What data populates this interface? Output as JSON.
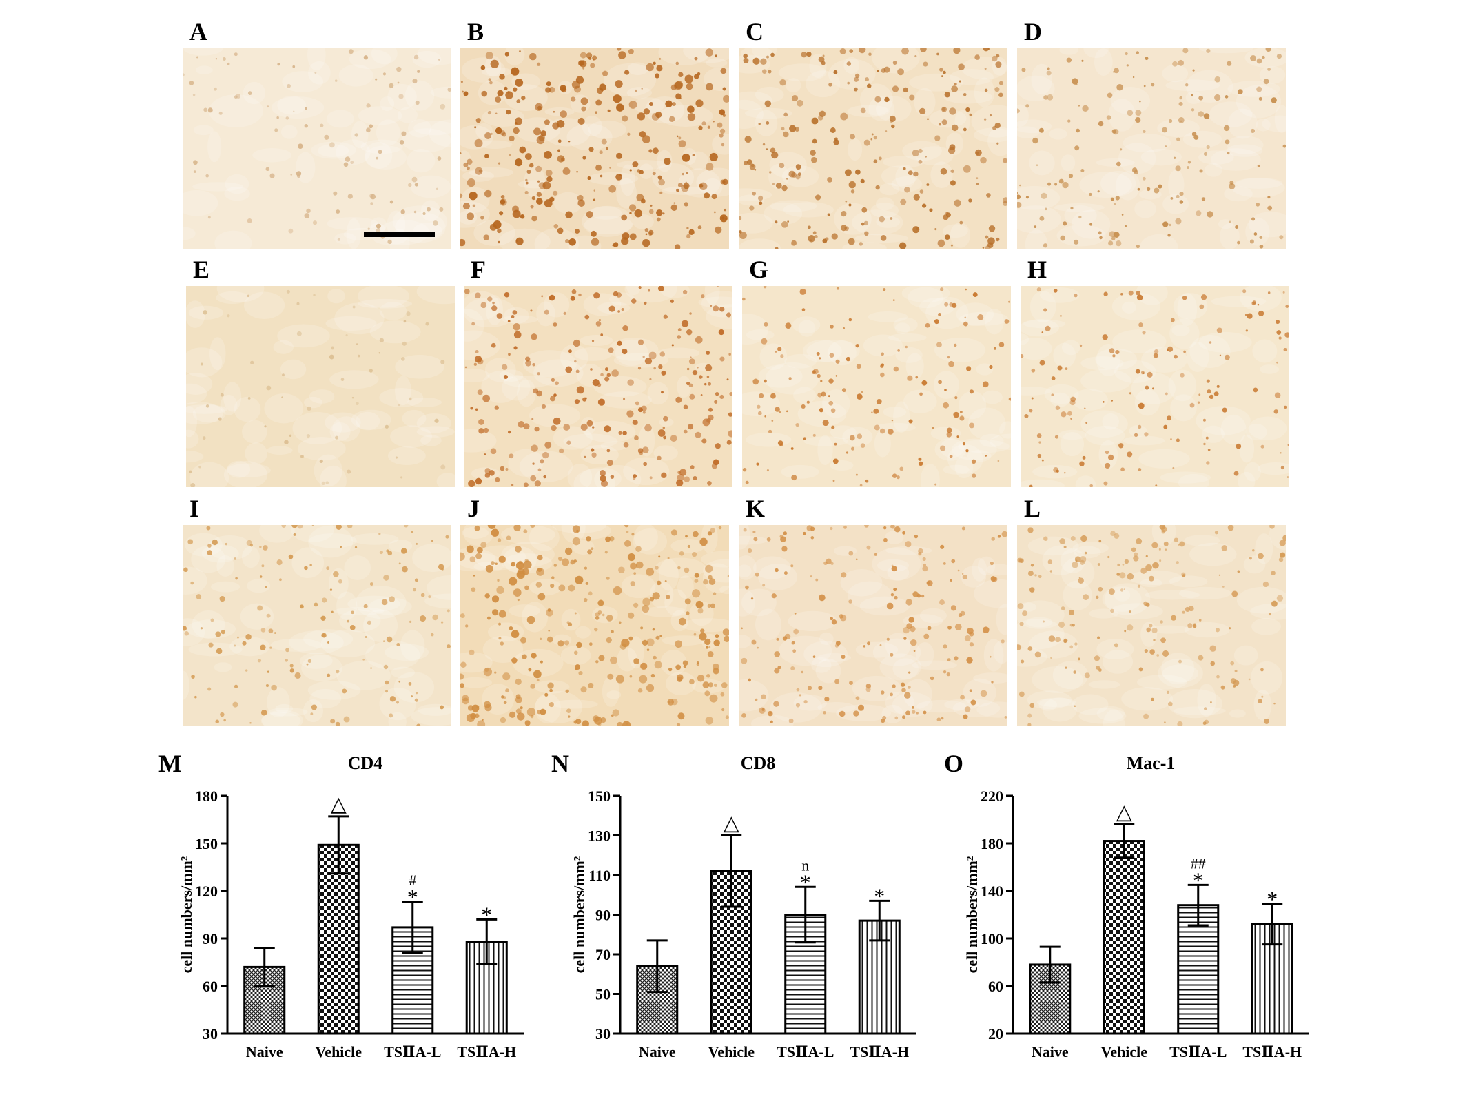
{
  "micrograph_panels": [
    {
      "label": "A",
      "stain": "light",
      "tone": "#f6ead6",
      "dots": "#d7b48a",
      "density": 0.25
    },
    {
      "label": "B",
      "stain": "heavy",
      "tone": "#f1dcbc",
      "dots": "#b5651d",
      "density": 1.0
    },
    {
      "label": "C",
      "stain": "heavy",
      "tone": "#f3e1c4",
      "dots": "#b8702a",
      "density": 0.75
    },
    {
      "label": "D",
      "stain": "medium",
      "tone": "#f5e6cf",
      "dots": "#c78f4f",
      "density": 0.5
    },
    {
      "label": "E",
      "stain": "light",
      "tone": "#f2e1c2",
      "dots": "#dcbf93",
      "density": 0.1
    },
    {
      "label": "F",
      "stain": "heavy",
      "tone": "#f3e0c0",
      "dots": "#bf6a25",
      "density": 0.8
    },
    {
      "label": "G",
      "stain": "medium",
      "tone": "#f5e6cb",
      "dots": "#c8772c",
      "density": 0.45
    },
    {
      "label": "H",
      "stain": "medium",
      "tone": "#f5e7cd",
      "dots": "#c97b33",
      "density": 0.4
    },
    {
      "label": "I",
      "stain": "medium",
      "tone": "#f3e4ca",
      "dots": "#d49a52",
      "density": 0.45
    },
    {
      "label": "J",
      "stain": "heavy",
      "tone": "#f2dcb8",
      "dots": "#d08d41",
      "density": 1.0
    },
    {
      "label": "K",
      "stain": "medium",
      "tone": "#f3e1c6",
      "dots": "#d38f46",
      "density": 0.6
    },
    {
      "label": "L",
      "stain": "medium",
      "tone": "#f3e3c9",
      "dots": "#d59a55",
      "density": 0.55
    }
  ],
  "chart_data": [
    {
      "panel": "M",
      "type": "bar",
      "title": "CD4",
      "ylabel": "cell numbers/mm²",
      "categories": [
        "Naive",
        "Vehicle",
        "TSⅡA-L",
        "TSⅡA-H"
      ],
      "values": [
        72,
        149,
        97,
        88
      ],
      "errors": [
        12,
        18,
        16,
        14
      ],
      "annotations": [
        [],
        [
          "△"
        ],
        [
          "#",
          "*"
        ],
        [
          "*"
        ]
      ],
      "patterns": [
        "crosshatch",
        "checker",
        "horizontal",
        "vertical"
      ],
      "ylim": [
        30,
        180
      ],
      "yticks": [
        30,
        60,
        90,
        120,
        150,
        180
      ]
    },
    {
      "panel": "N",
      "type": "bar",
      "title": "CD8",
      "ylabel": "cell numbers/mm²",
      "categories": [
        "Naive",
        "Vehicle",
        "TSⅡA-L",
        "TSⅡA-H"
      ],
      "values": [
        64,
        112,
        90,
        87
      ],
      "errors": [
        13,
        18,
        14,
        10
      ],
      "annotations": [
        [],
        [
          "△"
        ],
        [
          "n",
          "*"
        ],
        [
          "*"
        ]
      ],
      "patterns": [
        "crosshatch",
        "checker",
        "horizontal",
        "vertical"
      ],
      "ylim": [
        30,
        150
      ],
      "yticks": [
        30,
        50,
        70,
        90,
        110,
        130,
        150
      ]
    },
    {
      "panel": "O",
      "type": "bar",
      "title": "Mac-1",
      "ylabel": "cell numbers/mm²",
      "categories": [
        "Naive",
        "Vehicle",
        "TSⅡA-L",
        "TSⅡA-H"
      ],
      "values": [
        78,
        182,
        128,
        112
      ],
      "errors": [
        15,
        14,
        17,
        17
      ],
      "annotations": [
        [],
        [
          "△"
        ],
        [
          "##",
          "*"
        ],
        [
          "*"
        ]
      ],
      "patterns": [
        "crosshatch",
        "checker",
        "horizontal",
        "vertical"
      ],
      "ylim": [
        20,
        220
      ],
      "yticks": [
        20,
        60,
        100,
        140,
        180,
        220
      ]
    }
  ]
}
